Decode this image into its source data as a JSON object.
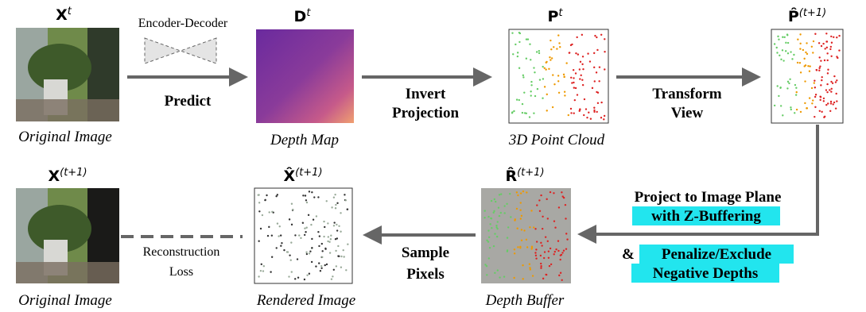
{
  "nodes": [
    {
      "symbol": "X",
      "sup": "t",
      "caption": "Original Image"
    },
    {
      "symbol": "D",
      "sup": "t",
      "caption": "Depth Map"
    },
    {
      "symbol": "P",
      "sup": "t",
      "caption": "3D Point Cloud"
    },
    {
      "symbol": "P̂",
      "sup": "(t+1)"
    },
    {
      "symbol": "R̂",
      "sup": "(t+1)",
      "caption": "Depth Buffer"
    },
    {
      "symbol": "X̂",
      "sup": "(t+1)",
      "caption": "Rendered Image"
    },
    {
      "symbol": "X",
      "sup": "(t+1)",
      "caption": "Original Image"
    }
  ],
  "edges": [
    {
      "note": "Encoder-Decoder",
      "label": [
        "Predict"
      ]
    },
    {
      "label": [
        "Invert",
        "Projection"
      ]
    },
    {
      "label": [
        "Transform",
        "View"
      ]
    },
    {
      "label": [
        "Project to Image Plane",
        "with Z-Buffering",
        "&",
        "Penalize/Exclude",
        "Negative Depths"
      ]
    },
    {
      "label": [
        "Sample",
        "Pixels"
      ]
    },
    {
      "label": [
        "Reconstruction",
        "Loss"
      ]
    }
  ]
}
